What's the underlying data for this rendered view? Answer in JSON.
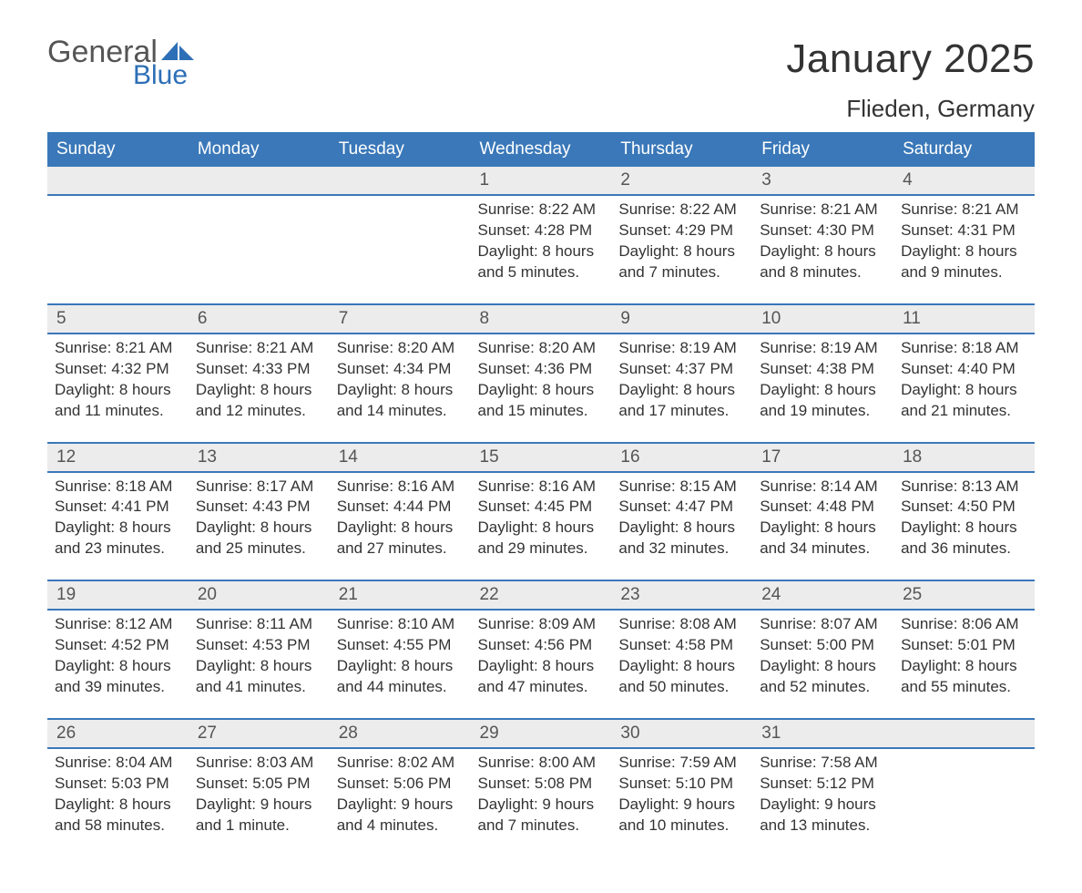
{
  "brand": {
    "line1": "General",
    "line2": "Blue",
    "text_color": "#555555",
    "accent_color": "#2d6fb6"
  },
  "title": "January 2025",
  "location": "Flieden, Germany",
  "colors": {
    "header_bg": "#3a78b9",
    "header_text": "#ffffff",
    "daynum_bg": "#ececec",
    "daynum_text": "#555555",
    "body_text": "#333333",
    "rule": "#3a78b9",
    "page_bg": "#ffffff"
  },
  "day_headers": [
    "Sunday",
    "Monday",
    "Tuesday",
    "Wednesday",
    "Thursday",
    "Friday",
    "Saturday"
  ],
  "weeks": [
    [
      null,
      null,
      null,
      {
        "n": "1",
        "sunrise": "8:22 AM",
        "sunset": "4:28 PM",
        "daylight": "8 hours and 5 minutes."
      },
      {
        "n": "2",
        "sunrise": "8:22 AM",
        "sunset": "4:29 PM",
        "daylight": "8 hours and 7 minutes."
      },
      {
        "n": "3",
        "sunrise": "8:21 AM",
        "sunset": "4:30 PM",
        "daylight": "8 hours and 8 minutes."
      },
      {
        "n": "4",
        "sunrise": "8:21 AM",
        "sunset": "4:31 PM",
        "daylight": "8 hours and 9 minutes."
      }
    ],
    [
      {
        "n": "5",
        "sunrise": "8:21 AM",
        "sunset": "4:32 PM",
        "daylight": "8 hours and 11 minutes."
      },
      {
        "n": "6",
        "sunrise": "8:21 AM",
        "sunset": "4:33 PM",
        "daylight": "8 hours and 12 minutes."
      },
      {
        "n": "7",
        "sunrise": "8:20 AM",
        "sunset": "4:34 PM",
        "daylight": "8 hours and 14 minutes."
      },
      {
        "n": "8",
        "sunrise": "8:20 AM",
        "sunset": "4:36 PM",
        "daylight": "8 hours and 15 minutes."
      },
      {
        "n": "9",
        "sunrise": "8:19 AM",
        "sunset": "4:37 PM",
        "daylight": "8 hours and 17 minutes."
      },
      {
        "n": "10",
        "sunrise": "8:19 AM",
        "sunset": "4:38 PM",
        "daylight": "8 hours and 19 minutes."
      },
      {
        "n": "11",
        "sunrise": "8:18 AM",
        "sunset": "4:40 PM",
        "daylight": "8 hours and 21 minutes."
      }
    ],
    [
      {
        "n": "12",
        "sunrise": "8:18 AM",
        "sunset": "4:41 PM",
        "daylight": "8 hours and 23 minutes."
      },
      {
        "n": "13",
        "sunrise": "8:17 AM",
        "sunset": "4:43 PM",
        "daylight": "8 hours and 25 minutes."
      },
      {
        "n": "14",
        "sunrise": "8:16 AM",
        "sunset": "4:44 PM",
        "daylight": "8 hours and 27 minutes."
      },
      {
        "n": "15",
        "sunrise": "8:16 AM",
        "sunset": "4:45 PM",
        "daylight": "8 hours and 29 minutes."
      },
      {
        "n": "16",
        "sunrise": "8:15 AM",
        "sunset": "4:47 PM",
        "daylight": "8 hours and 32 minutes."
      },
      {
        "n": "17",
        "sunrise": "8:14 AM",
        "sunset": "4:48 PM",
        "daylight": "8 hours and 34 minutes."
      },
      {
        "n": "18",
        "sunrise": "8:13 AM",
        "sunset": "4:50 PM",
        "daylight": "8 hours and 36 minutes."
      }
    ],
    [
      {
        "n": "19",
        "sunrise": "8:12 AM",
        "sunset": "4:52 PM",
        "daylight": "8 hours and 39 minutes."
      },
      {
        "n": "20",
        "sunrise": "8:11 AM",
        "sunset": "4:53 PM",
        "daylight": "8 hours and 41 minutes."
      },
      {
        "n": "21",
        "sunrise": "8:10 AM",
        "sunset": "4:55 PM",
        "daylight": "8 hours and 44 minutes."
      },
      {
        "n": "22",
        "sunrise": "8:09 AM",
        "sunset": "4:56 PM",
        "daylight": "8 hours and 47 minutes."
      },
      {
        "n": "23",
        "sunrise": "8:08 AM",
        "sunset": "4:58 PM",
        "daylight": "8 hours and 50 minutes."
      },
      {
        "n": "24",
        "sunrise": "8:07 AM",
        "sunset": "5:00 PM",
        "daylight": "8 hours and 52 minutes."
      },
      {
        "n": "25",
        "sunrise": "8:06 AM",
        "sunset": "5:01 PM",
        "daylight": "8 hours and 55 minutes."
      }
    ],
    [
      {
        "n": "26",
        "sunrise": "8:04 AM",
        "sunset": "5:03 PM",
        "daylight": "8 hours and 58 minutes."
      },
      {
        "n": "27",
        "sunrise": "8:03 AM",
        "sunset": "5:05 PM",
        "daylight": "9 hours and 1 minute."
      },
      {
        "n": "28",
        "sunrise": "8:02 AM",
        "sunset": "5:06 PM",
        "daylight": "9 hours and 4 minutes."
      },
      {
        "n": "29",
        "sunrise": "8:00 AM",
        "sunset": "5:08 PM",
        "daylight": "9 hours and 7 minutes."
      },
      {
        "n": "30",
        "sunrise": "7:59 AM",
        "sunset": "5:10 PM",
        "daylight": "9 hours and 10 minutes."
      },
      {
        "n": "31",
        "sunrise": "7:58 AM",
        "sunset": "5:12 PM",
        "daylight": "9 hours and 13 minutes."
      },
      null
    ]
  ],
  "labels": {
    "sunrise": "Sunrise:",
    "sunset": "Sunset:",
    "daylight": "Daylight:"
  }
}
